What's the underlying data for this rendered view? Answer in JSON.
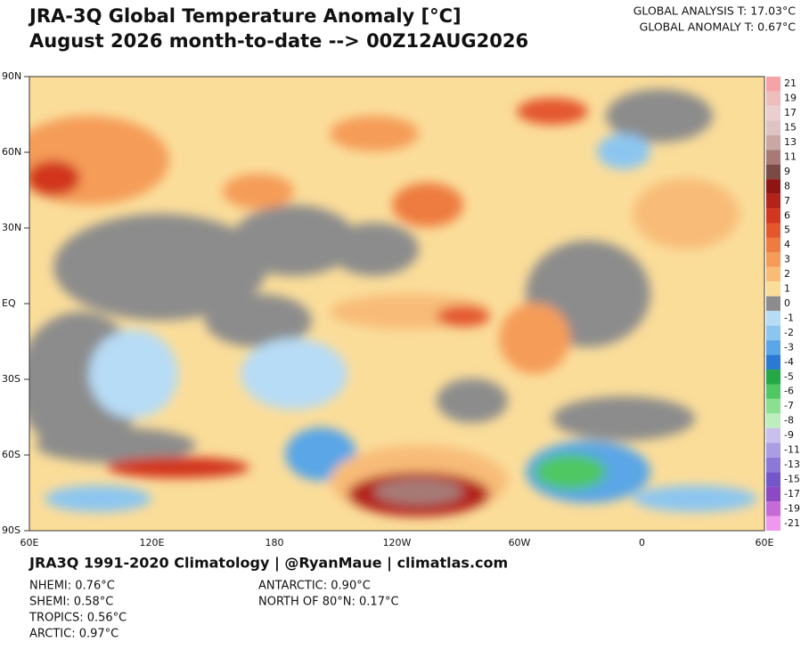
{
  "header": {
    "title": "JRA-3Q Global Temperature Anomaly [°C]",
    "subtitle": "August 2026 month-to-date --> 00Z12AUG2026",
    "global_analysis": "GLOBAL ANALYSIS T: 17.03°C",
    "global_anomaly": "GLOBAL ANOMALY T: 0.67°C"
  },
  "map": {
    "lat_labels": [
      "90N",
      "60N",
      "30N",
      "EQ",
      "30S",
      "60S",
      "90S"
    ],
    "lon_labels": [
      "60E",
      "120E",
      "180",
      "120W",
      "60W",
      "0",
      "60E"
    ]
  },
  "colorbar": {
    "levels": [
      21,
      19,
      17,
      15,
      13,
      11,
      9,
      8,
      7,
      6,
      5,
      4,
      3,
      2,
      1,
      0,
      -1,
      -2,
      -3,
      -4,
      -5,
      -6,
      -7,
      -8,
      -9,
      -11,
      -13,
      -15,
      -17,
      -19,
      -21
    ],
    "colors": [
      "#f6a3a8",
      "#eebdbd",
      "#e9cfcf",
      "#ddc4c4",
      "#c8a7a5",
      "#a77a76",
      "#7a4a45",
      "#8e1512",
      "#b4231a",
      "#d2361f",
      "#e4572d",
      "#ee7b40",
      "#f59c58",
      "#f8bc78",
      "#fbdd9a",
      "#8c8c8c",
      "#b7dcf5",
      "#8cc6f0",
      "#5aa6e6",
      "#2a7ad4",
      "#24a845",
      "#4fc763",
      "#8be08f",
      "#bdefbe",
      "#c9c0ee",
      "#aa9de4",
      "#8a79d8",
      "#7456cb",
      "#8b49c3",
      "#c66ad8",
      "#ee98ee"
    ]
  },
  "footer": {
    "credit": "JRA3Q 1991-2020 Climatology | @RyanMaue | climatlas.com",
    "stats_left": [
      "NHEMI: 0.76°C",
      "SHEMI: 0.58°C",
      "TROPICS: 0.56°C",
      "ARCTIC: 0.97°C"
    ],
    "stats_right": [
      "ANTARCTIC: 0.90°C",
      "NORTH OF 80°N: 0.17°C"
    ]
  }
}
